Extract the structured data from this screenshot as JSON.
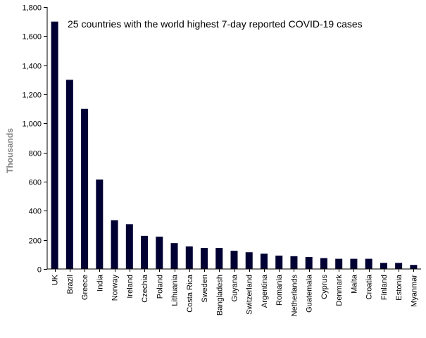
{
  "chart_data": {
    "type": "bar",
    "title": "25 countries with the world highest 7-day reported COVID-19 cases",
    "xlabel": "",
    "ylabel": "Thousands",
    "ylim": [
      0,
      1800
    ],
    "yticks": [
      0,
      200,
      400,
      600,
      800,
      1000,
      1200,
      1400,
      1600,
      1800
    ],
    "ytick_labels": [
      "0",
      "200",
      "400",
      "600",
      "800",
      "1,000",
      "1,200",
      "1,400",
      "1,600",
      "1,800"
    ],
    "grid": false,
    "legend": "none",
    "bar_color": "#000033",
    "categories": [
      "UK",
      "Brazil",
      "Greece",
      "India",
      "Norway",
      "Ireland",
      "Czechia",
      "Poland",
      "Lithuania",
      "Costa Rica",
      "Sweden",
      "Bangladesh",
      "Guyana",
      "Switzerland",
      "Argentina",
      "Romania",
      "Netherlands",
      "Guatemala",
      "Cyprus",
      "Denmark",
      "Malta",
      "Croatia",
      "Finland",
      "Estonia",
      "Myanmar"
    ],
    "values": [
      1700,
      1300,
      1100,
      615,
      335,
      308,
      228,
      222,
      178,
      155,
      145,
      145,
      125,
      115,
      105,
      92,
      88,
      82,
      75,
      70,
      70,
      70,
      42,
      42,
      28
    ]
  }
}
